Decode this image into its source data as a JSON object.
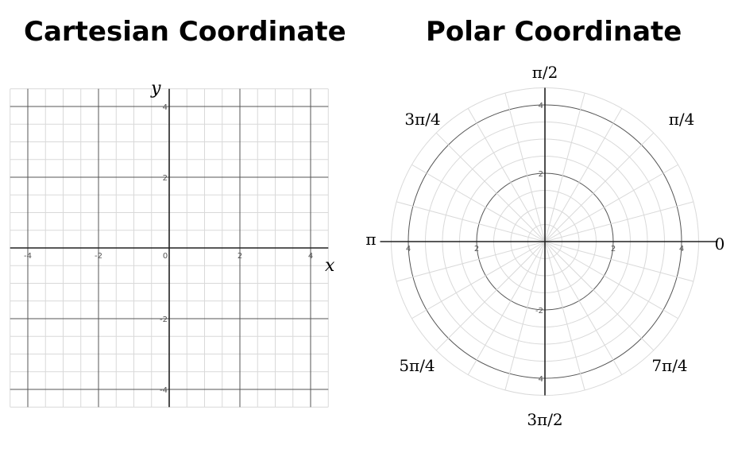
{
  "titles": {
    "cartesian": "Cartesian Coordinate",
    "polar": "Polar Coordinate"
  },
  "cartesian": {
    "x_axis_label": "x",
    "y_axis_label": "y",
    "x_ticks": [
      "-4",
      "-2",
      "0",
      "2",
      "4"
    ],
    "y_ticks": [
      "4",
      "2",
      "-2",
      "-4"
    ],
    "range": [
      -4.5,
      4.5
    ],
    "minor_step": 0.5,
    "major_step": 2
  },
  "polar": {
    "radial_ticks_right": [
      "2",
      "4"
    ],
    "radial_ticks_left": [
      "2",
      "4"
    ],
    "radial_ticks_up": [
      "2",
      "4"
    ],
    "radial_ticks_down": [
      "-2",
      "4"
    ],
    "angle_labels": {
      "a0": "0",
      "a45": "π/4",
      "a90": "π/2",
      "a135": "3π/4",
      "a180": "π",
      "a225": "5π/4",
      "a270": "3π/2",
      "a315": "7π/4"
    },
    "r_max": 4.5,
    "ring_step": 0.5,
    "spoke_step_degrees": 15
  },
  "colors": {
    "minor_grid": "#d9d9d9",
    "major_grid": "#555555",
    "axis": "#222222",
    "text": "#000000"
  }
}
